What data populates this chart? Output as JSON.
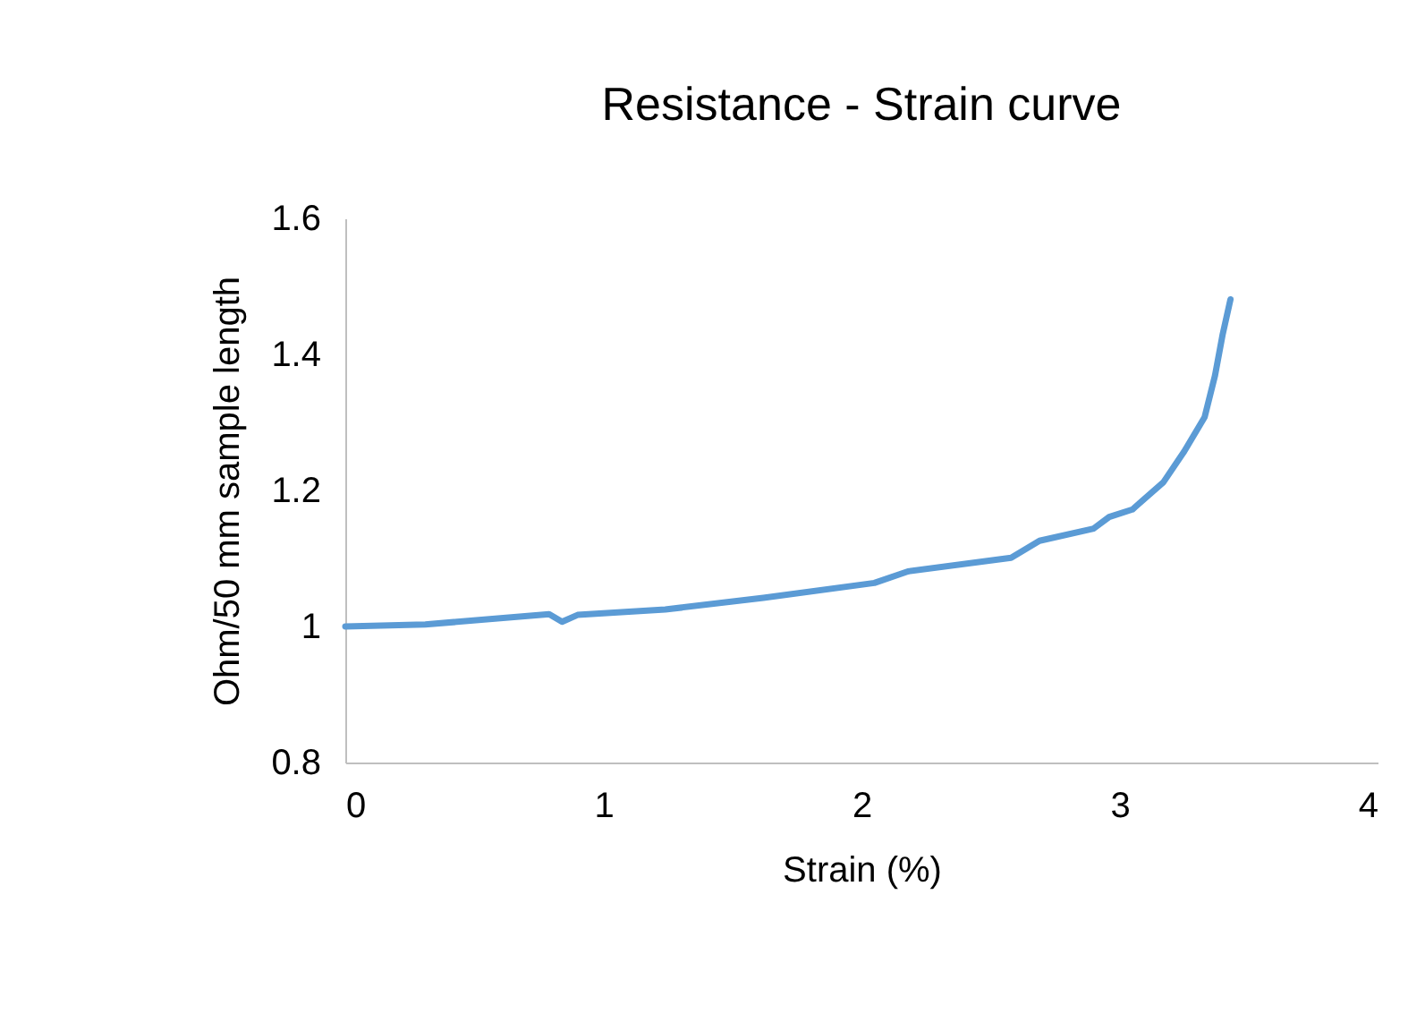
{
  "chart_data": {
    "type": "line",
    "title": "Resistance - Strain curve",
    "xlabel": "Strain (%)",
    "ylabel": "Ohm/50 mm sample length",
    "xlim": [
      0,
      4
    ],
    "xticks": [
      0,
      1,
      2,
      3,
      4
    ],
    "ylim": [
      0.8,
      1.6
    ],
    "yticks": [
      0.8,
      1,
      1.2,
      1.4,
      1.6
    ],
    "grid": false,
    "legend": false,
    "marker": "none",
    "line_style": "solid",
    "series": [
      {
        "color": "#5b9bd5",
        "x": [
          0,
          0.31,
          0.79,
          0.84,
          0.9,
          1.24,
          1.62,
          2.05,
          2.18,
          2.58,
          2.69,
          2.9,
          2.96,
          3.05,
          3.17,
          3.25,
          3.33,
          3.37,
          3.4,
          3.43
        ],
        "values": [
          1.0,
          1.003,
          1.018,
          1.007,
          1.017,
          1.025,
          1.042,
          1.064,
          1.081,
          1.101,
          1.126,
          1.144,
          1.161,
          1.172,
          1.212,
          1.257,
          1.308,
          1.369,
          1.43,
          1.481
        ]
      }
    ]
  }
}
